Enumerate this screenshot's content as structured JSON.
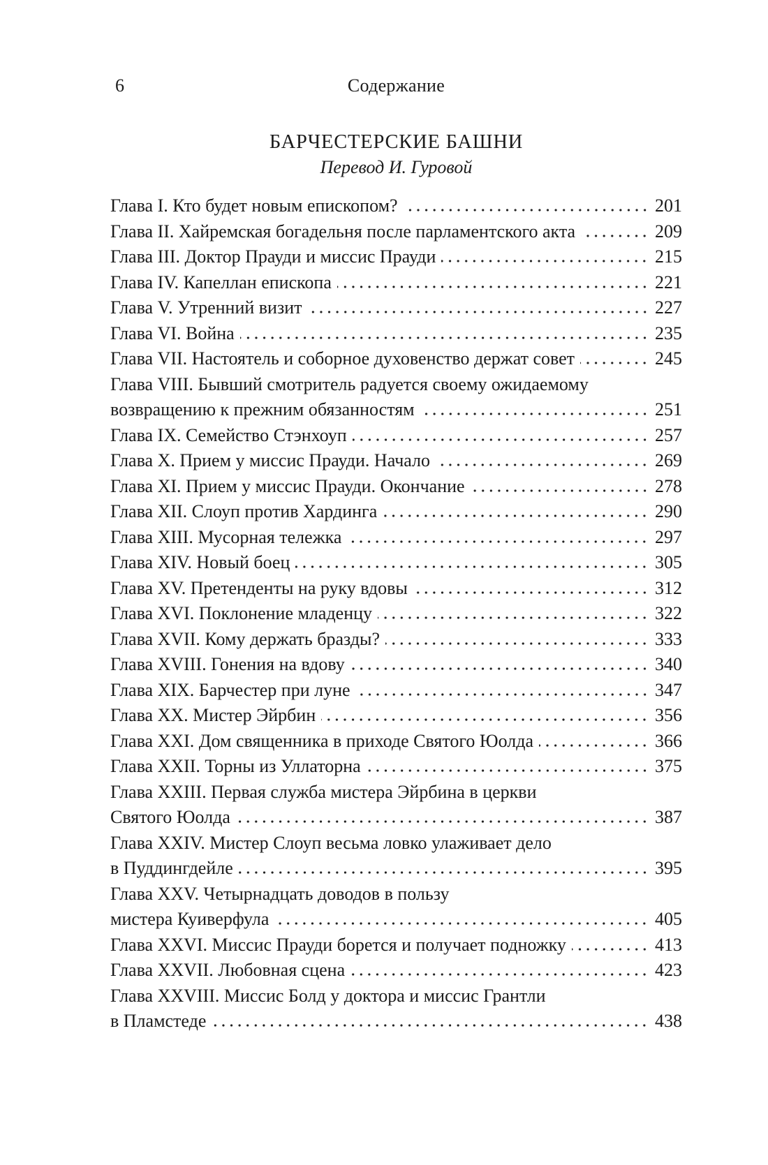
{
  "page": {
    "folio": "6",
    "running_header": "Содержание",
    "title": "БАРЧЕСТЕРСКИЕ БАШНИ",
    "subtitle": "Перевод И. Гуровой"
  },
  "toc": {
    "entries": [
      {
        "text": "Глава I. Кто будет новым епископом?",
        "page": "201"
      },
      {
        "text": "Глава II. Хайремская богадельня после парламентского акта",
        "page": "209"
      },
      {
        "text": "Глава III. Доктор Прауди и миссис Прауди",
        "page": "215"
      },
      {
        "text": "Глава IV. Капеллан епископа",
        "page": "221"
      },
      {
        "text": "Глава V. Утренний визит",
        "page": "227"
      },
      {
        "text": "Глава VI. Война",
        "page": "235"
      },
      {
        "text": "Глава VII. Настоятель и соборное духовенство держат совет",
        "page": "245"
      },
      {
        "text": "Глава VIII. Бывший смотритель радуется своему ожидаемому",
        "text2": "возвращению к прежним обязанностям",
        "page": "251"
      },
      {
        "text": "Глава IX. Семейство Стэнхоуп",
        "page": "257"
      },
      {
        "text": "Глава X. Прием у миссис Прауди. Начало",
        "page": "269"
      },
      {
        "text": "Глава XI. Прием у миссис Прауди. Окончание",
        "page": "278"
      },
      {
        "text": "Глава XII. Слоуп против Хардинга",
        "page": "290"
      },
      {
        "text": "Глава XIII. Мусорная тележка",
        "page": "297"
      },
      {
        "text": "Глава XIV. Новый боец",
        "page": "305"
      },
      {
        "text": "Глава XV. Претенденты на руку вдовы",
        "page": "312"
      },
      {
        "text": "Глава XVI. Поклонение младенцу",
        "page": "322"
      },
      {
        "text": "Глава XVII. Кому держать бразды?",
        "page": "333"
      },
      {
        "text": "Глава XVIII. Гонения на вдову",
        "page": "340"
      },
      {
        "text": "Глава XIX. Барчестер при луне",
        "page": "347"
      },
      {
        "text": "Глава XX. Мистер Эйрбин",
        "page": "356"
      },
      {
        "text": "Глава XXI. Дом священника в приходе Святого Юолда",
        "page": "366"
      },
      {
        "text": "Глава XXII. Торны из Уллаторна",
        "page": "375"
      },
      {
        "text": "Глава XXIII. Первая служба мистера Эйрбина в церкви",
        "text2": "Святого Юолда",
        "page": "387"
      },
      {
        "text": "Глава XXIV. Мистер Слоуп весьма ловко улаживает дело",
        "text2": "в Пуддингдейле",
        "page": "395"
      },
      {
        "text": "Глава XXV. Четырнадцать доводов в пользу",
        "text2": "мистера Куиверфула",
        "page": "405"
      },
      {
        "text": "Глава XXVI. Миссис Прауди борется и получает подножку",
        "page": "413"
      },
      {
        "text": "Глава XXVII. Любовная сцена",
        "page": "423"
      },
      {
        "text": "Глава XXVIII. Миссис Болд у доктора и миссис Грантли",
        "text2": "в Пламстеде",
        "page": "438"
      }
    ]
  }
}
